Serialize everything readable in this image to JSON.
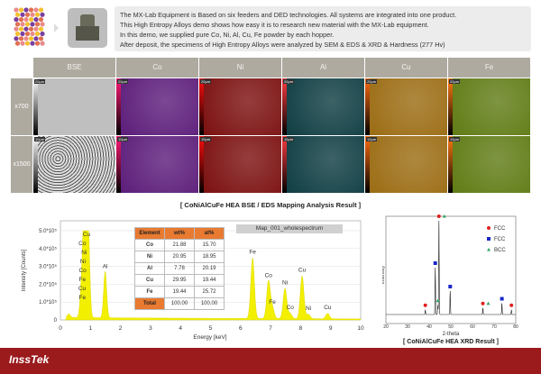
{
  "description": [
    "The MX-Lab Equipment is Based on six feeders and DED technologies. All systems are integrated into one product.",
    "This High Entropy Alloys demo shows how easy it is to research new material with the MX-Lab equipment.",
    "In this demo, we supplied pure Co, Ni, Al, Cu, Fe powder by each hopper.",
    "After deposit, the specimens of High Entropy Alloys were analyzed by SEM & EDS & XRD & Hardness (277 Hv)"
  ],
  "mapping": {
    "columns": [
      {
        "label": "BSE",
        "color": "#b8b8b8"
      },
      {
        "label": "Co",
        "color": "#5a1a78"
      },
      {
        "label": "Ni",
        "color": "#7a0d0d"
      },
      {
        "label": "Al",
        "color": "#0c3b40"
      },
      {
        "label": "Cu",
        "color": "#9a6a10"
      },
      {
        "label": "Fe",
        "color": "#5e7a12"
      }
    ],
    "rows": [
      {
        "label": "x700",
        "scale": "20μm"
      },
      {
        "label": "x1500",
        "scale": "10μm"
      }
    ],
    "caption": "[ CoNiAlCuFe HEA BSE / EDS Mapping Analysis Result ]"
  },
  "chart_data": [
    {
      "type": "area",
      "title": "Map_001_wholespectrum",
      "xlabel": "Energy [keV]",
      "ylabel": "Intensity [Counts]",
      "xlim": [
        0,
        10
      ],
      "ylim": [
        0,
        500000
      ],
      "xticks": [
        "0",
        "1",
        "2",
        "3",
        "4",
        "5",
        "6",
        "7",
        "8",
        "9",
        "10"
      ],
      "yticks": [
        "0",
        "1.0*10⁵",
        "2.0*10⁵",
        "3.0*10⁵",
        "4.0*10⁵",
        "5.0*10⁵"
      ],
      "color": "#f2ef00",
      "peaks": [
        {
          "energy": 0.28,
          "counts": 20000,
          "label": ""
        },
        {
          "energy": 0.7,
          "counts": 150000,
          "label": "Fe"
        },
        {
          "energy": 0.78,
          "counts": 210000,
          "label": "Cu"
        },
        {
          "energy": 0.8,
          "counts": 300000,
          "label": "Co"
        },
        {
          "energy": 0.85,
          "counts": 370000,
          "label": "Ni"
        },
        {
          "energy": 0.93,
          "counts": 440000,
          "label": "Cu"
        },
        {
          "energy": 1.49,
          "counts": 260000,
          "label": "Al"
        },
        {
          "energy": 6.4,
          "counts": 340000,
          "label": "Fe"
        },
        {
          "energy": 6.93,
          "counts": 210000,
          "label": "Co"
        },
        {
          "energy": 7.06,
          "counts": 60000,
          "label": "Fe"
        },
        {
          "energy": 7.48,
          "counts": 170000,
          "label": "Ni"
        },
        {
          "energy": 7.65,
          "counts": 30000,
          "label": "Co"
        },
        {
          "energy": 8.05,
          "counts": 240000,
          "label": "Cu"
        },
        {
          "energy": 8.26,
          "counts": 25000,
          "label": "Ni"
        },
        {
          "energy": 8.9,
          "counts": 30000,
          "label": "Cu"
        }
      ],
      "extra_labels": [
        {
          "energy": 0.7,
          "counts": 380000,
          "label": "Co"
        },
        {
          "energy": 0.7,
          "counts": 300000,
          "label": "Fe"
        },
        {
          "energy": 0.72,
          "counts": 360000,
          "label": "Ni"
        }
      ],
      "table": {
        "headers": [
          "Element",
          "wt%",
          "at%"
        ],
        "rows": [
          [
            "Co",
            "21.88",
            "15.70"
          ],
          [
            "Ni",
            "20.95",
            "18.95"
          ],
          [
            "Al",
            "7.78",
            "20.19"
          ],
          [
            "Cu",
            "29.95",
            "19.44"
          ],
          [
            "Fe",
            "19.44",
            "25.72"
          ]
        ],
        "total": [
          "Total",
          "100.00",
          "100.00"
        ]
      }
    },
    {
      "type": "line",
      "xlabel": "2-theta",
      "ylabel": "Intensity",
      "xlim": [
        20,
        80
      ],
      "xticks": [
        "20",
        "30",
        "40",
        "50",
        "60",
        "70",
        "80"
      ],
      "legend": [
        {
          "name": "FCC",
          "marker": "circle",
          "color": "#e02020"
        },
        {
          "name": "FCC",
          "marker": "square",
          "color": "#1a28c8"
        },
        {
          "name": "BCC",
          "marker": "triangle",
          "color": "#2aa060"
        }
      ],
      "legend_position": "top-right",
      "peaks": [
        {
          "two_theta": 38.2,
          "intensity": 0.05,
          "markers": [
            "circle"
          ]
        },
        {
          "two_theta": 42.8,
          "intensity": 0.5,
          "markers": [
            "square"
          ]
        },
        {
          "two_theta": 44.0,
          "intensity": 0.1,
          "markers": [
            "triangle"
          ]
        },
        {
          "two_theta": 44.5,
          "intensity": 1.0,
          "markers": [
            "circle",
            "triangle"
          ]
        },
        {
          "two_theta": 49.7,
          "intensity": 0.25,
          "markers": [
            "square"
          ]
        },
        {
          "two_theta": 64.8,
          "intensity": 0.07,
          "markers": [
            "circle",
            "triangle"
          ]
        },
        {
          "two_theta": 73.6,
          "intensity": 0.12,
          "markers": [
            "square"
          ]
        },
        {
          "two_theta": 78.0,
          "intensity": 0.05,
          "markers": [
            "circle"
          ]
        }
      ],
      "caption": "[ CoNiAlCuFe HEA XRD Result ]"
    }
  ],
  "footer": {
    "logo": "InssTek",
    "color": "#9b1a1c"
  }
}
